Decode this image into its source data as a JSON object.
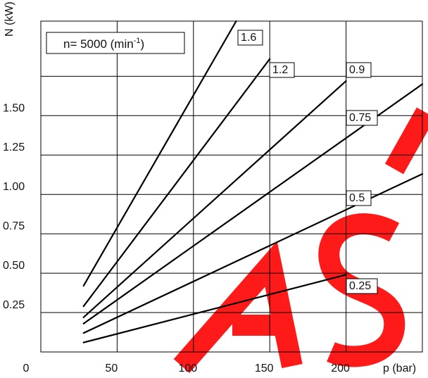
{
  "chart_data": {
    "type": "line",
    "xlabel": "p (bar)",
    "ylabel": "N (kW)",
    "annotation": {
      "prefix": "n= 5000 (min",
      "superscript": "-1",
      "suffix": ")"
    },
    "x_ticks": [
      "0",
      "50",
      "100",
      "150",
      "200"
    ],
    "y_ticks": [
      "0.25",
      "0.50",
      "0.75",
      "1.00",
      "1.25",
      "1.50"
    ],
    "xlim": [
      0,
      250
    ],
    "ylim": [
      0,
      2.1
    ],
    "grid": true,
    "series": [
      {
        "name": "1.6",
        "x": [
          28,
          128
        ],
        "y": [
          0.42,
          2.1
        ]
      },
      {
        "name": "1.2",
        "x": [
          28,
          150
        ],
        "y": [
          0.29,
          1.86
        ]
      },
      {
        "name": "0.9",
        "x": [
          28,
          200
        ],
        "y": [
          0.22,
          1.72
        ]
      },
      {
        "name": "0.75",
        "x": [
          28,
          250
        ],
        "y": [
          0.18,
          1.7
        ]
      },
      {
        "name": "0.5",
        "x": [
          28,
          250
        ],
        "y": [
          0.12,
          1.13
        ]
      },
      {
        "name": "0.25",
        "x": [
          28,
          200
        ],
        "y": [
          0.06,
          0.49
        ]
      }
    ],
    "watermark": "ASF",
    "watermark_color": "#ff1a1a"
  }
}
